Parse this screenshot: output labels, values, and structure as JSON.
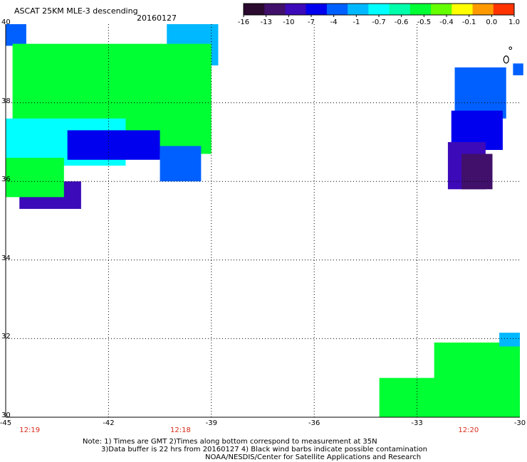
{
  "header": {
    "title": "ASCAT 25KM MLE-3 descending",
    "date": "20160127"
  },
  "colorbar": {
    "labels": [
      "-16",
      "-13",
      "-10",
      "-7",
      "-4",
      "-1",
      "-0.7",
      "-0.6",
      "-0.5",
      "-0.4",
      "-0.1",
      "0.0",
      "1.0"
    ],
    "colors": [
      "#2a0a2e",
      "#40106a",
      "#3c0ab8",
      "#0000ee",
      "#0060ff",
      "#00b8ff",
      "#00ffff",
      "#00ffaa",
      "#00ff33",
      "#66ff00",
      "#ffff00",
      "#ff9900",
      "#ff3300"
    ]
  },
  "chart_data": {
    "type": "heatmap",
    "title": "ASCAT 25KM MLE-3 descending",
    "xlabel": "",
    "ylabel": "",
    "xlim": [
      -45,
      -30
    ],
    "ylim": [
      30,
      40
    ],
    "x_ticks": [
      "-45",
      "-42",
      "-39",
      "-36",
      "-33",
      "-30"
    ],
    "y_ticks": [
      "30",
      "32",
      "34",
      "36",
      "38",
      "40"
    ],
    "grid": true,
    "legend": "colorbar top-right",
    "regions": [
      {
        "lon": [
          -45,
          -44.4
        ],
        "lat": [
          39.45,
          40.0
        ],
        "level": "-4"
      },
      {
        "lon": [
          -40.3,
          -38.8
        ],
        "lat": [
          38.95,
          40.0
        ],
        "level": "-1"
      },
      {
        "lon": [
          -44.8,
          -39.0
        ],
        "lat": [
          36.7,
          39.5
        ],
        "level": "-0.5"
      },
      {
        "lon": [
          -45,
          -41.5
        ],
        "lat": [
          36.4,
          37.6
        ],
        "level": "-0.7"
      },
      {
        "lon": [
          -43.2,
          -40.5
        ],
        "lat": [
          36.55,
          37.3
        ],
        "level": "-7"
      },
      {
        "lon": [
          -40.5,
          -39.3
        ],
        "lat": [
          36.0,
          36.9
        ],
        "level": "-4"
      },
      {
        "lon": [
          -44.6,
          -42.8
        ],
        "lat": [
          35.3,
          36.0
        ],
        "level": "-10"
      },
      {
        "lon": [
          -45,
          -43.3
        ],
        "lat": [
          35.6,
          36.6
        ],
        "level": "-0.5"
      },
      {
        "lon": [
          -31.9,
          -30.4
        ],
        "lat": [
          37.6,
          38.9
        ],
        "level": "-4"
      },
      {
        "lon": [
          -32.0,
          -30.5
        ],
        "lat": [
          36.8,
          37.8
        ],
        "level": "-7"
      },
      {
        "lon": [
          -32.1,
          -31.0
        ],
        "lat": [
          35.8,
          37.0
        ],
        "level": "-10"
      },
      {
        "lon": [
          -31.7,
          -30.8
        ],
        "lat": [
          35.8,
          36.7
        ],
        "level": "-13"
      },
      {
        "lon": [
          -30.2,
          -29.9
        ],
        "lat": [
          38.7,
          39.0
        ],
        "level": "-4"
      },
      {
        "lon": [
          -34.1,
          -30.0
        ],
        "lat": [
          30.0,
          31.0
        ],
        "level": "-0.5"
      },
      {
        "lon": [
          -32.5,
          -30.0
        ],
        "lat": [
          30.8,
          31.9
        ],
        "level": "-0.5"
      },
      {
        "lon": [
          -30.6,
          -30.0
        ],
        "lat": [
          31.8,
          32.15
        ],
        "level": "-1"
      }
    ],
    "wind_barbs": [
      {
        "lon": -30.4,
        "lat": 39.1
      }
    ]
  },
  "time_labels": [
    {
      "text": "12:19",
      "lon": -44.3
    },
    {
      "text": "12:18",
      "lon": -39.9
    },
    {
      "text": "12:20",
      "lon": -31.5
    }
  ],
  "notes": {
    "line1": "Note: 1) Times are GMT 2)Times along bottom correspond to measurement at 35N",
    "line2": "3)Data buffer is 22 hrs from 20160127 4) Black wind barbs indicate possible contamination",
    "line3": "NOAA/NESDIS/Center for Satellite Applications and Research"
  }
}
